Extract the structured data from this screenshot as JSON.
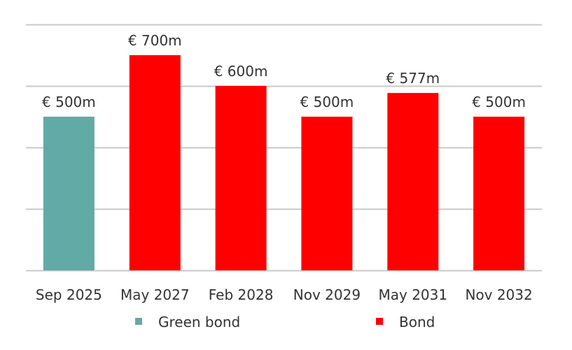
{
  "chart_data": {
    "type": "bar",
    "categories": [
      "Sep 2025",
      "May 2027",
      "Feb 2028",
      "Nov 2029",
      "May 2031",
      "Nov 2032"
    ],
    "values": [
      500,
      700,
      600,
      500,
      577,
      500
    ],
    "data_labels": [
      "€ 500m",
      "€ 700m",
      "€ 600m",
      "€ 500m",
      "€ 577m",
      "€ 500m"
    ],
    "series_of_bar": [
      0,
      1,
      1,
      1,
      1,
      1
    ],
    "series": [
      {
        "name": "Green bond",
        "color": "#62aaa6"
      },
      {
        "name": "Bond",
        "color": "#ff0000"
      }
    ],
    "ylim": [
      0,
      800
    ],
    "y_gridlines": [
      0,
      200,
      400,
      600,
      800
    ],
    "grid": true,
    "legend_placement": "bottom",
    "gridline_color": "#c8c8c8"
  }
}
